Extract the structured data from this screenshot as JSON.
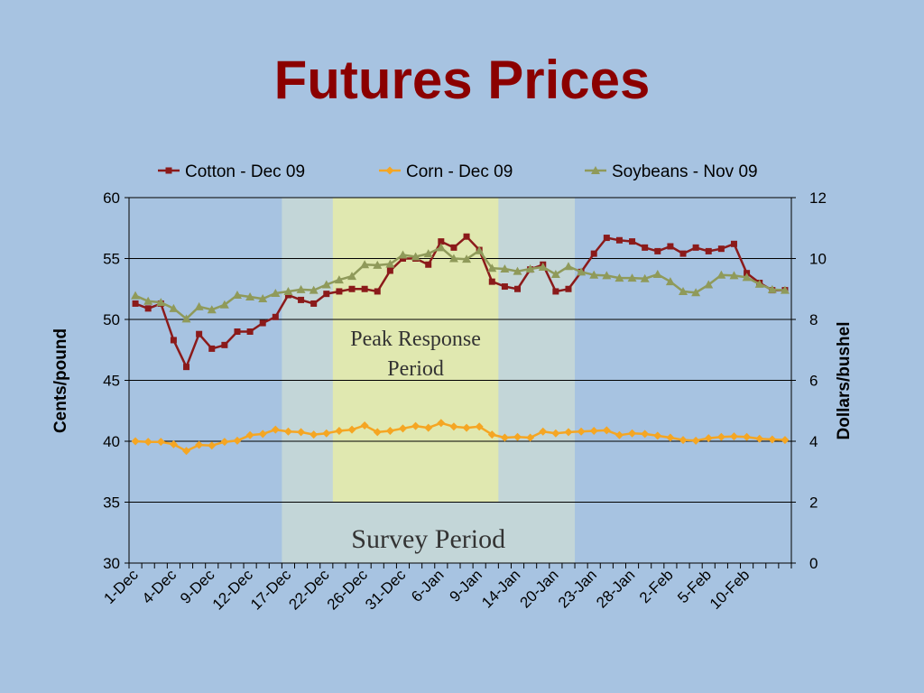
{
  "slide": {
    "title": "Futures Prices"
  },
  "chart_data": {
    "type": "line",
    "title": "",
    "xlabel": "",
    "ylabel": "Cents/pound",
    "y2label": "Dollars/bushel",
    "ylim": [
      30,
      60
    ],
    "y2lim": [
      0,
      12
    ],
    "yticks": [
      30,
      35,
      40,
      45,
      50,
      55,
      60
    ],
    "y2ticks": [
      0,
      2,
      4,
      6,
      8,
      10,
      12
    ],
    "grid": true,
    "legend": "top",
    "x_tick_labels": [
      "1-Dec",
      "4-Dec",
      "9-Dec",
      "12-Dec",
      "17-Dec",
      "22-Dec",
      "26-Dec",
      "31-Dec",
      "6-Jan",
      "9-Jan",
      "14-Jan",
      "20-Jan",
      "23-Jan",
      "28-Jan",
      "2-Feb",
      "5-Feb",
      "10-Feb"
    ],
    "x_tick_label_positions": [
      0,
      3,
      6,
      9,
      12,
      15,
      18,
      21,
      24,
      27,
      30,
      33,
      36,
      39,
      42,
      45,
      48
    ],
    "n_points": 52,
    "regions": [
      {
        "label": "Survey Period",
        "start": 11.5,
        "end": 34.5,
        "color": "#c3d6d8"
      },
      {
        "label": "Peak Response Period",
        "label_lines": [
          "Peak Response",
          "Period"
        ],
        "start": 15.5,
        "end": 28.5,
        "color": "#e0e8b0"
      }
    ],
    "series": [
      {
        "name": "Cotton - Dec 09",
        "axis": "left",
        "color": "#8b1a1a",
        "marker": "square",
        "values": [
          51.3,
          50.9,
          51.3,
          48.3,
          46.1,
          48.8,
          47.6,
          47.9,
          49.0,
          49.0,
          49.7,
          50.2,
          52.0,
          51.6,
          51.3,
          52.1,
          52.3,
          52.5,
          52.5,
          52.3,
          54.0,
          55.0,
          55.0,
          54.5,
          56.4,
          55.9,
          56.8,
          55.7,
          53.1,
          52.7,
          52.5,
          54.1,
          54.5,
          52.3,
          52.5,
          53.9,
          55.4,
          56.7,
          56.5,
          56.4,
          55.9,
          55.6,
          56.0,
          55.4,
          55.9,
          55.6,
          55.8,
          56.2,
          53.8,
          53.0,
          52.4,
          52.4
        ]
      },
      {
        "name": "Corn - Dec 09",
        "axis": "right",
        "color": "#f5a623",
        "marker": "diamond",
        "values": [
          4.0,
          3.98,
          3.98,
          3.9,
          3.68,
          3.88,
          3.86,
          3.98,
          4.02,
          4.2,
          4.24,
          4.38,
          4.32,
          4.3,
          4.22,
          4.26,
          4.34,
          4.38,
          4.52,
          4.3,
          4.34,
          4.42,
          4.5,
          4.44,
          4.6,
          4.48,
          4.44,
          4.48,
          4.22,
          4.12,
          4.14,
          4.12,
          4.32,
          4.26,
          4.3,
          4.32,
          4.34,
          4.36,
          4.2,
          4.26,
          4.24,
          4.18,
          4.12,
          4.04,
          4.02,
          4.1,
          4.14,
          4.16,
          4.14,
          4.08,
          4.06,
          4.04
        ]
      },
      {
        "name": "Soybeans - Nov 09",
        "axis": "right",
        "color": "#8f9a5a",
        "marker": "triangle",
        "values": [
          8.78,
          8.6,
          8.56,
          8.36,
          8.02,
          8.42,
          8.32,
          8.48,
          8.8,
          8.74,
          8.68,
          8.86,
          8.92,
          8.98,
          8.96,
          9.14,
          9.3,
          9.42,
          9.8,
          9.78,
          9.82,
          10.12,
          10.06,
          10.16,
          10.36,
          10.0,
          9.98,
          10.26,
          9.68,
          9.66,
          9.58,
          9.66,
          9.72,
          9.48,
          9.74,
          9.56,
          9.46,
          9.44,
          9.36,
          9.36,
          9.34,
          9.48,
          9.24,
          8.92,
          8.88,
          9.14,
          9.46,
          9.44,
          9.38,
          9.16,
          8.98,
          8.96
        ]
      }
    ]
  }
}
